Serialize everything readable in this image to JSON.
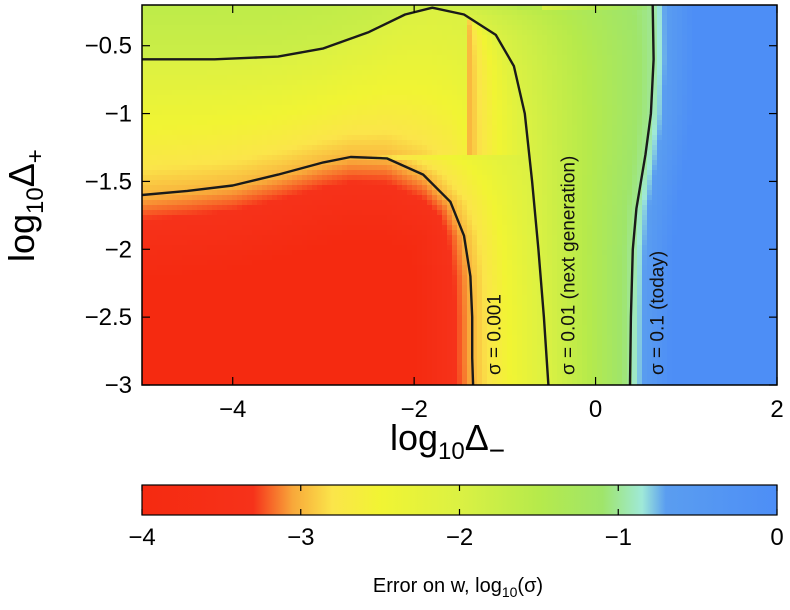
{
  "chart_data": [
    {
      "type": "heatmap",
      "x": {
        "label": "log10Δ−",
        "label_parts": {
          "base": "log",
          "sub1": "10",
          "sym": "Δ",
          "sub2": "−"
        },
        "lim": [
          -5,
          2
        ],
        "ticks": [
          -4,
          -2,
          0,
          2
        ],
        "tick_labels": [
          "−4",
          "−2",
          "0",
          "2"
        ]
      },
      "y": {
        "label": "log10Δ+",
        "label_parts": {
          "base": "log",
          "sub1": "10",
          "sym": "Δ",
          "sub2": "+"
        },
        "lim": [
          -3,
          -0.2
        ],
        "ticks": [
          -0.5,
          -1,
          -1.5,
          -2,
          -2.5,
          -3
        ],
        "tick_labels": [
          "−0.5",
          "−1",
          "−1.5",
          "−2",
          "−2.5",
          "−3"
        ]
      },
      "z_description": "Error on w, log10(σ)",
      "contours": [
        {
          "level": 0.001,
          "label": "σ = 0.001",
          "points": [
            [
              -5,
              -1.6
            ],
            [
              -4.5,
              -1.57
            ],
            [
              -4,
              -1.53
            ],
            [
              -3.5,
              -1.45
            ],
            [
              -3,
              -1.36
            ],
            [
              -2.7,
              -1.32
            ],
            [
              -2.3,
              -1.33
            ],
            [
              -1.9,
              -1.45
            ],
            [
              -1.6,
              -1.65
            ],
            [
              -1.45,
              -1.9
            ],
            [
              -1.38,
              -2.2
            ],
            [
              -1.36,
              -2.5
            ],
            [
              -1.36,
              -2.8
            ],
            [
              -1.35,
              -3
            ]
          ]
        },
        {
          "level": 0.01,
          "label": "σ = 0.01  (next generation)",
          "points": [
            [
              -5,
              -0.6
            ],
            [
              -4.2,
              -0.6
            ],
            [
              -3.5,
              -0.58
            ],
            [
              -3,
              -0.52
            ],
            [
              -2.5,
              -0.4
            ],
            [
              -2.1,
              -0.27
            ],
            [
              -1.8,
              -0.22
            ],
            [
              -1.45,
              -0.27
            ],
            [
              -1.1,
              -0.42
            ],
            [
              -0.9,
              -0.65
            ],
            [
              -0.78,
              -1.0
            ],
            [
              -0.7,
              -1.5
            ],
            [
              -0.63,
              -2.0
            ],
            [
              -0.57,
              -2.5
            ],
            [
              -0.52,
              -3
            ]
          ]
        },
        {
          "level": 0.1,
          "label": "σ = 0.1  (today)",
          "points": [
            [
              0.63,
              -0.2
            ],
            [
              0.64,
              -0.6
            ],
            [
              0.61,
              -1.0
            ],
            [
              0.55,
              -1.3
            ],
            [
              0.45,
              -1.7
            ],
            [
              0.41,
              -2.0
            ],
            [
              0.39,
              -2.5
            ],
            [
              0.38,
              -3
            ]
          ]
        }
      ]
    },
    {
      "type": "colorbar",
      "label": "Error on w, log10(σ)",
      "label_parts": {
        "pre": "Error on w, log",
        "sub": "10",
        "post": "(σ)"
      },
      "lim": [
        -4,
        0
      ],
      "ticks": [
        -4,
        -3,
        -2,
        -1,
        0
      ],
      "tick_labels": [
        "−4",
        "−3",
        "−2",
        "−1",
        "0"
      ],
      "colormap": [
        {
          "v": -4.0,
          "color": "#f52a10"
        },
        {
          "v": -3.3,
          "color": "#f6321a"
        },
        {
          "v": -3.05,
          "color": "#f8a83a"
        },
        {
          "v": -2.8,
          "color": "#fbe54a"
        },
        {
          "v": -2.5,
          "color": "#f1f433"
        },
        {
          "v": -2.0,
          "color": "#dbf143"
        },
        {
          "v": -1.5,
          "color": "#b6ea4b"
        },
        {
          "v": -1.1,
          "color": "#9fe56a"
        },
        {
          "v": -0.85,
          "color": "#9fe9d8"
        },
        {
          "v": -0.7,
          "color": "#5a9df0"
        },
        {
          "v": 0.0,
          "color": "#4d8ef6"
        }
      ]
    }
  ]
}
